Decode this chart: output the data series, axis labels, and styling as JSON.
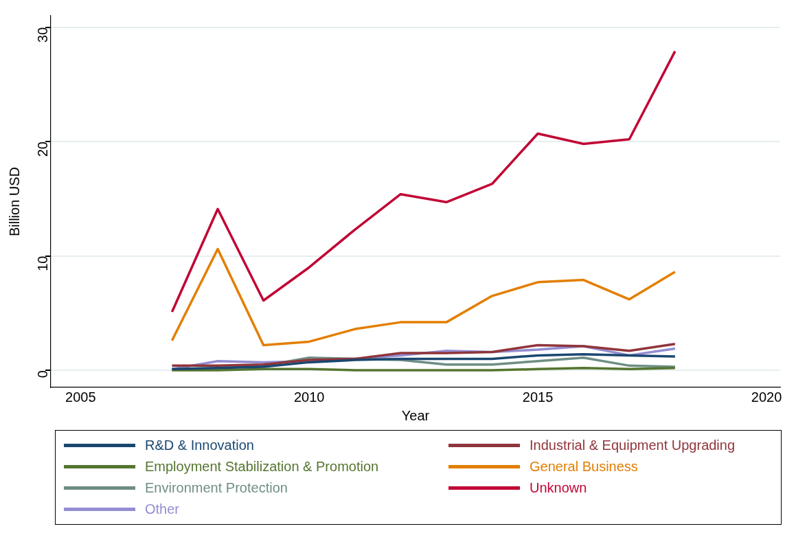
{
  "chart_data": {
    "type": "line",
    "xlabel": "Year",
    "ylabel": "Billion USD",
    "x": [
      2007,
      2008,
      2009,
      2010,
      2011,
      2012,
      2013,
      2014,
      2015,
      2016,
      2017,
      2018
    ],
    "series": [
      {
        "name": "R&D & Innovation",
        "color": "#1a476f",
        "values": [
          0.1,
          0.2,
          0.3,
          0.7,
          0.9,
          1.0,
          1.0,
          1.0,
          1.3,
          1.4,
          1.3,
          1.2
        ]
      },
      {
        "name": "Industrial & Equipment Upgrading",
        "color": "#90353b",
        "values": [
          0.4,
          0.4,
          0.5,
          0.9,
          1.0,
          1.5,
          1.5,
          1.6,
          2.2,
          2.1,
          1.7,
          2.3
        ]
      },
      {
        "name": "Employment Stabilization & Promotion",
        "color": "#55752f",
        "values": [
          0,
          0,
          0.1,
          0.1,
          0,
          0,
          0,
          0,
          0.1,
          0.2,
          0.1,
          0.2
        ]
      },
      {
        "name": "General Business",
        "color": "#e37e00",
        "values": [
          2.6,
          10.6,
          2.2,
          2.5,
          3.6,
          4.2,
          4.2,
          6.5,
          7.7,
          7.9,
          6.2,
          8.6
        ]
      },
      {
        "name": "Environment Protection",
        "color": "#6e8e84",
        "values": [
          0.1,
          0.2,
          0.4,
          1.1,
          1.0,
          0.9,
          0.5,
          0.5,
          0.8,
          1.1,
          0.4,
          0.3
        ]
      },
      {
        "name": "Unknown",
        "color": "#c10534",
        "values": [
          5.1,
          14.1,
          6.1,
          9.0,
          12.3,
          15.4,
          14.7,
          16.3,
          20.7,
          19.8,
          20.2,
          27.9
        ]
      },
      {
        "name": "Other",
        "color": "#938dd2",
        "values": [
          0.1,
          0.8,
          0.7,
          0.8,
          1.0,
          1.3,
          1.7,
          1.6,
          1.8,
          2.1,
          1.3,
          1.9
        ]
      }
    ],
    "xlim": [
      2004.35,
      2020.3
    ],
    "xticks": [
      2005,
      2010,
      2015,
      2020
    ],
    "ylim": [
      -1.5,
      31
    ],
    "yticks": [
      0,
      10,
      20,
      30
    ],
    "grid": "y",
    "legend": "bottom",
    "marker": "none",
    "line_style": "solid"
  }
}
